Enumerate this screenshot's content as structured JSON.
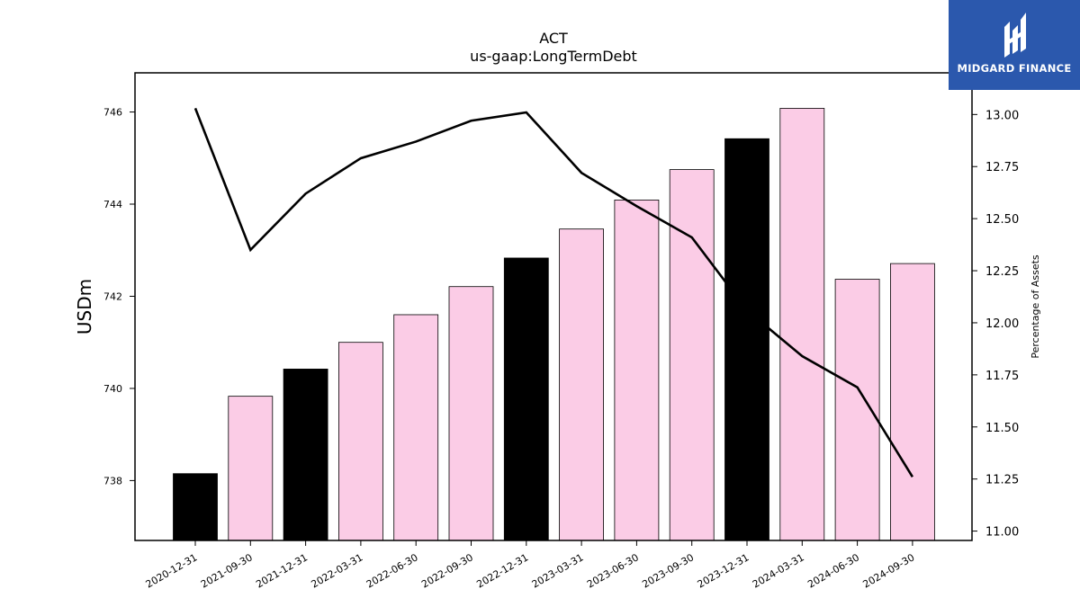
{
  "chart_data": {
    "type": "bar",
    "title": "ACT",
    "subtitle": "us-gaap:LongTermDebt",
    "ylabel": "USDm",
    "y2label": "Percentage of Assets",
    "categories": [
      "2020-12-31",
      "2021-09-30",
      "2021-12-31",
      "2022-03-31",
      "2022-06-30",
      "2022-09-30",
      "2022-12-31",
      "2023-03-31",
      "2023-06-30",
      "2023-09-30",
      "2023-12-31",
      "2024-03-31",
      "2024-06-30",
      "2024-09-30"
    ],
    "values": [
      738.15,
      739.83,
      740.42,
      741.0,
      741.6,
      742.21,
      742.83,
      743.46,
      744.09,
      744.75,
      745.42,
      746.08,
      742.37,
      742.71
    ],
    "bar_colors": [
      "#000000",
      "#fbcce6",
      "#000000",
      "#fbcce6",
      "#fbcce6",
      "#fbcce6",
      "#000000",
      "#fbcce6",
      "#fbcce6",
      "#fbcce6",
      "#000000",
      "#fbcce6",
      "#fbcce6",
      "#fbcce6"
    ],
    "line_values": [
      13.03,
      12.35,
      12.62,
      12.79,
      12.87,
      12.97,
      13.01,
      12.72,
      12.56,
      12.41,
      12.06,
      11.84,
      11.69,
      11.26
    ],
    "ylim": [
      736.7,
      746.85
    ],
    "y_ticks": [
      738,
      740,
      742,
      744,
      746
    ],
    "y2lim": [
      10.955,
      13.2
    ],
    "y2_ticks": [
      "11.00",
      "11.25",
      "11.50",
      "11.75",
      "12.00",
      "12.25",
      "12.50",
      "12.75",
      "13.00"
    ]
  },
  "logo": {
    "text": "MIDGARD FINANCE"
  },
  "colors": {
    "accent_bar": "#fbcce6",
    "highlight_bar": "#000000",
    "line": "#000000",
    "logo_bg": "#2b58ad"
  }
}
